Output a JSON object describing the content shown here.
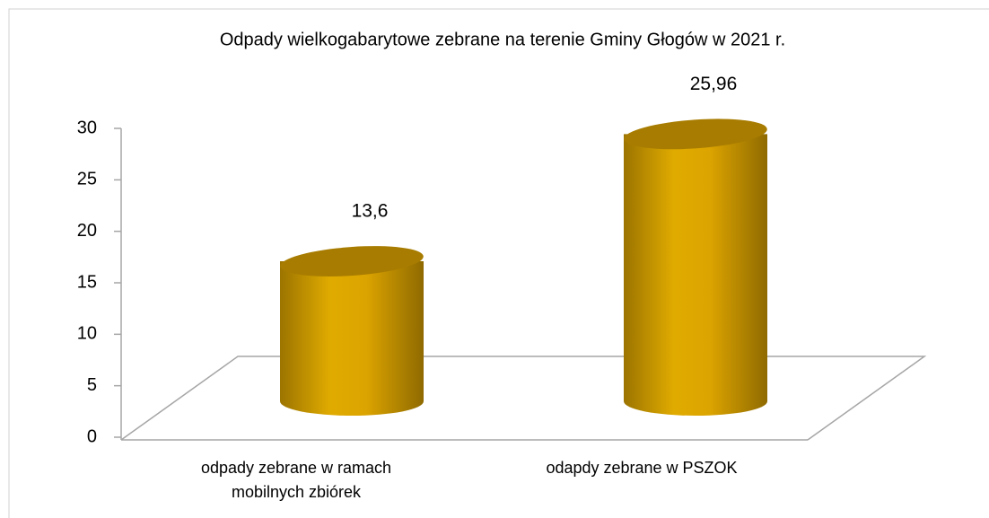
{
  "chart_data": {
    "type": "bar",
    "title": "Odpady wielkogabarytowe zebrane na terenie Gminy Głogów w 2021 r.",
    "categories": [
      "odpady zebrane w ramach mobilnych zbiórek",
      "odapdy zebrane w PSZOK"
    ],
    "values": [
      13.6,
      25.96
    ],
    "value_labels": [
      "13,6",
      "25,96"
    ],
    "color": "#d9a300",
    "ylim": [
      0,
      30
    ],
    "yticks": [
      0,
      5,
      10,
      15,
      20,
      25,
      30
    ]
  }
}
